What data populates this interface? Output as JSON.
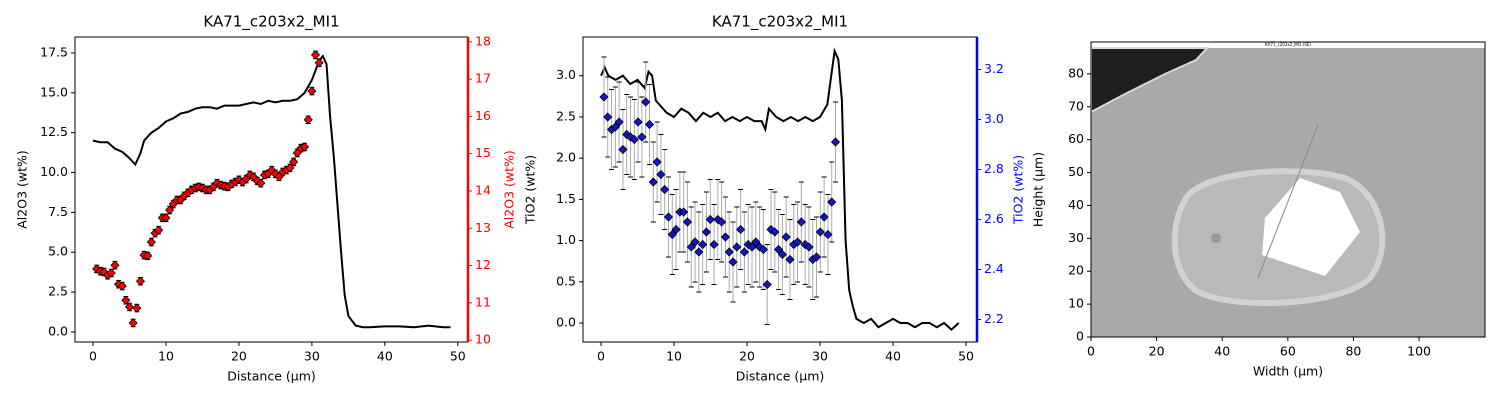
{
  "chart_data": [
    {
      "type": "line",
      "title": "KA71_c203x2_MI1",
      "xlabel": "Distance (µm)",
      "ylabel": "Al2O3 (wt%)",
      "y2label": "Al2O3 (wt%)",
      "y2color": "red",
      "xlim": [
        -2.47,
        51.4
      ],
      "xticks": [
        0,
        10,
        20,
        30,
        40,
        50
      ],
      "ylim": [
        -0.63,
        18.5
      ],
      "yticks": [
        {
          "value": 0,
          "label": "0.0"
        },
        2.5,
        {
          "value": 5,
          "label": "5.0"
        },
        7.5,
        {
          "value": 10,
          "label": "10.0"
        },
        12.5,
        {
          "value": 15,
          "label": "15.0"
        },
        17.5
      ],
      "y2lim": [
        9.95,
        18.13
      ],
      "y2ticks": [
        10,
        11,
        12,
        13,
        14,
        15,
        16,
        17,
        18
      ],
      "series": [
        {
          "kind": "line",
          "color": "black",
          "x": [
            0,
            1,
            2,
            3,
            4,
            5,
            5.8,
            6.5,
            7,
            8,
            9,
            10,
            11,
            12,
            13,
            14,
            15,
            16,
            17,
            18,
            19,
            20,
            21,
            22,
            23,
            24,
            25,
            26,
            27,
            28,
            29,
            30,
            31,
            31.5,
            32,
            32.5,
            33,
            34,
            34.5,
            35,
            36,
            37,
            38,
            40,
            42,
            44,
            46,
            48,
            49
          ],
          "values": [
            12.0,
            11.9,
            11.9,
            11.5,
            11.3,
            10.9,
            10.5,
            11.2,
            12.0,
            12.5,
            12.8,
            13.2,
            13.4,
            13.7,
            13.8,
            14.0,
            14.1,
            14.1,
            14.0,
            14.2,
            14.2,
            14.2,
            14.3,
            14.4,
            14.3,
            14.5,
            14.4,
            14.5,
            14.5,
            14.6,
            15.0,
            15.8,
            17.0,
            17.3,
            16.8,
            13.5,
            11.0,
            5.0,
            2.3,
            1.0,
            0.4,
            0.3,
            0.3,
            0.35,
            0.35,
            0.3,
            0.4,
            0.3,
            0.3
          ]
        },
        {
          "kind": "errorbar",
          "axis": "y2",
          "color": "red",
          "ecolor": "black",
          "capcolor": "black",
          "yerr": 0.1,
          "x": [
            0.5,
            1,
            1.5,
            2,
            2.5,
            3,
            3.5,
            4,
            4.5,
            5,
            5.5,
            6,
            6.5,
            7,
            7.5,
            8,
            8.5,
            9,
            9.5,
            10,
            10.5,
            11,
            11.5,
            12,
            12.5,
            13,
            13.5,
            14,
            14.5,
            15,
            15.5,
            16,
            16.5,
            17,
            17.5,
            18,
            18.5,
            19,
            19.5,
            20,
            20.5,
            21,
            21.5,
            22,
            22.5,
            23,
            23.5,
            24,
            24.5,
            25,
            25.5,
            26,
            26.5,
            27,
            27.5,
            28,
            28.5,
            29,
            29.5,
            30,
            30.5,
            31
          ],
          "values": [
            11.91,
            11.85,
            11.83,
            11.74,
            11.8,
            12.01,
            11.5,
            11.45,
            11.07,
            10.89,
            10.46,
            10.86,
            11.58,
            12.28,
            12.26,
            12.63,
            12.87,
            12.95,
            13.28,
            13.28,
            13.49,
            13.65,
            13.76,
            13.76,
            13.87,
            13.95,
            14.03,
            14.08,
            14.11,
            14.08,
            14.03,
            14.03,
            14.11,
            14.21,
            14.16,
            14.13,
            14.11,
            14.19,
            14.24,
            14.3,
            14.24,
            14.32,
            14.43,
            14.38,
            14.27,
            14.21,
            14.43,
            14.46,
            14.56,
            14.46,
            14.38,
            14.51,
            14.56,
            14.62,
            14.78,
            15.02,
            15.15,
            15.18,
            15.91,
            16.68,
            17.65,
            17.44
          ]
        }
      ]
    },
    {
      "type": "line",
      "title": "KA71_c203x2_MI1",
      "xlabel": "Distance (µm)",
      "ylabel": "TiO2 (wt%)",
      "y2label": "TiO2 (wt%)",
      "y2color": "blue",
      "xlim": [
        -2.47,
        51.5
      ],
      "xticks": [
        0,
        10,
        20,
        30,
        40,
        50
      ],
      "ylim": [
        -0.23,
        3.47
      ],
      "yticks": [
        {
          "value": 0,
          "label": "0.0"
        },
        0.5,
        {
          "value": 1,
          "label": "1.0"
        },
        1.5,
        {
          "value": 2,
          "label": "2.0"
        },
        2.5,
        {
          "value": 3,
          "label": "3.0"
        }
      ],
      "y2lim": [
        2.11,
        3.33
      ],
      "y2ticks": [
        2.2,
        2.4,
        2.6,
        2.8,
        {
          "value": 3,
          "label": "3.0"
        },
        3.2
      ],
      "series": [
        {
          "kind": "line",
          "color": "black",
          "x": [
            0,
            0.5,
            1,
            2,
            3,
            4,
            5,
            6,
            6.5,
            7,
            7.5,
            8,
            9,
            10,
            11,
            12,
            13,
            14,
            15,
            16,
            17,
            18,
            19,
            20,
            21,
            22,
            22.5,
            23,
            24,
            25,
            26,
            27,
            28,
            29,
            30,
            31,
            32,
            32.5,
            33,
            33.5,
            34,
            34.5,
            35,
            36,
            37,
            38,
            39,
            40,
            41,
            42,
            43,
            44,
            45,
            46,
            47,
            48,
            49
          ],
          "values": [
            3.0,
            3.1,
            3.0,
            2.95,
            3.0,
            2.9,
            2.95,
            2.85,
            3.05,
            3.0,
            2.7,
            2.65,
            2.55,
            2.5,
            2.6,
            2.55,
            2.45,
            2.55,
            2.5,
            2.55,
            2.45,
            2.5,
            2.45,
            2.5,
            2.45,
            2.45,
            2.35,
            2.6,
            2.5,
            2.45,
            2.5,
            2.45,
            2.5,
            2.45,
            2.5,
            2.65,
            3.3,
            3.2,
            2.7,
            1.0,
            0.4,
            0.2,
            0.05,
            0.0,
            0.05,
            -0.05,
            0.0,
            0.05,
            0.0,
            0.0,
            -0.05,
            0.0,
            0.0,
            -0.05,
            0.0,
            -0.08,
            0.0
          ]
        },
        {
          "kind": "errorbar",
          "axis": "y2",
          "color": "#1414c8",
          "ecolor": "#aaaaaa",
          "capcolor": "black",
          "yerr": 0.16,
          "x": [
            0.4,
            0.92,
            1.44,
            1.96,
            2.48,
            3.0,
            3.52,
            4.04,
            4.56,
            5.08,
            5.6,
            6.12,
            6.64,
            7.16,
            7.68,
            8.2,
            8.72,
            9.24,
            9.76,
            10.28,
            10.8,
            11.32,
            11.84,
            12.36,
            12.88,
            13.4,
            13.92,
            14.44,
            14.96,
            15.48,
            16.0,
            16.52,
            17.04,
            17.56,
            18.08,
            18.6,
            19.12,
            19.64,
            20.16,
            20.68,
            21.2,
            21.72,
            22.24,
            22.76,
            23.28,
            23.8,
            24.32,
            24.84,
            25.36,
            25.88,
            26.4,
            26.92,
            27.44,
            27.96,
            28.48,
            29.0,
            29.52,
            30.04,
            30.56,
            31.08,
            31.6,
            32.12
          ],
          "values": [
            3.09,
            3.01,
            2.96,
            2.97,
            2.99,
            2.88,
            2.94,
            2.93,
            2.92,
            2.99,
            2.93,
            3.07,
            2.98,
            2.75,
            2.83,
            2.78,
            2.72,
            2.61,
            2.54,
            2.56,
            2.63,
            2.63,
            2.59,
            2.49,
            2.51,
            2.47,
            2.5,
            2.55,
            2.6,
            2.5,
            2.6,
            2.59,
            2.53,
            2.47,
            2.43,
            2.49,
            2.56,
            2.47,
            2.5,
            2.49,
            2.51,
            2.49,
            2.48,
            2.34,
            2.56,
            2.55,
            2.48,
            2.46,
            2.53,
            2.44,
            2.5,
            2.51,
            2.59,
            2.5,
            2.49,
            2.44,
            2.45,
            2.55,
            2.61,
            2.54,
            2.67,
            2.91
          ]
        }
      ]
    },
    {
      "type": "image",
      "caption": "KA71_c203x2_MI1 (SE)",
      "xlabel": "Width (µm)",
      "ylabel": "Height (µm)",
      "xlim": [
        0,
        120.1
      ],
      "xticks": [
        0,
        20,
        40,
        60,
        80,
        100
      ],
      "ylim": [
        0,
        89.7
      ],
      "yticks": [
        0,
        10,
        20,
        30,
        40,
        50,
        60,
        70,
        80
      ]
    }
  ]
}
